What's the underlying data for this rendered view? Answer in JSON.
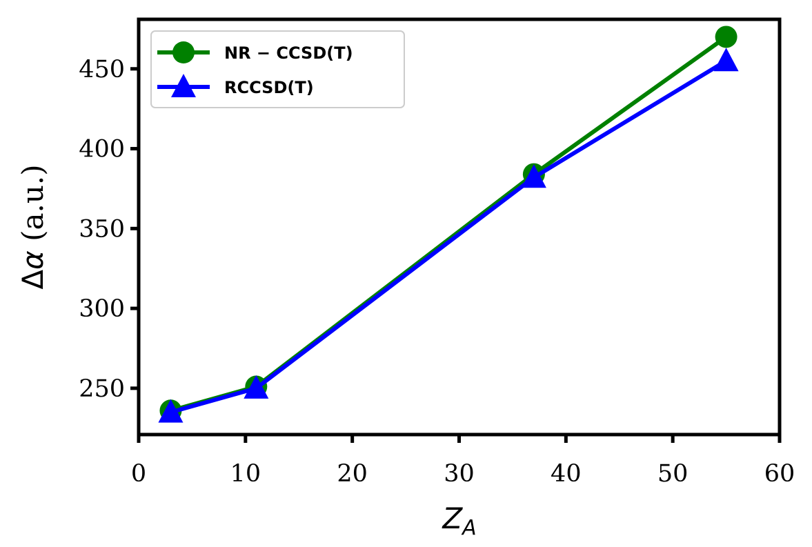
{
  "chart_data": {
    "type": "line",
    "xlabel_main": "Z",
    "xlabel_sub": "A",
    "ylabel_delta": "Δ",
    "ylabel_alpha": "α",
    "ylabel_unit": " (a.u.)",
    "xlim": [
      0,
      60
    ],
    "ylim": [
      221,
      481
    ],
    "xticks": [
      0,
      10,
      20,
      30,
      40,
      50,
      60
    ],
    "yticks": [
      250,
      300,
      350,
      400,
      450
    ],
    "grid": false,
    "legend_position": "top-left",
    "series": [
      {
        "name": "NR − CCSD(T)",
        "color": "#008000",
        "marker": "circle",
        "x": [
          3,
          11,
          37,
          55
        ],
        "y": [
          236,
          251,
          384,
          470
        ]
      },
      {
        "name": "RCCSD(T)",
        "color": "#0000ff",
        "marker": "triangle",
        "x": [
          3,
          11,
          37,
          55
        ],
        "y": [
          235,
          250,
          382,
          455
        ]
      }
    ]
  }
}
